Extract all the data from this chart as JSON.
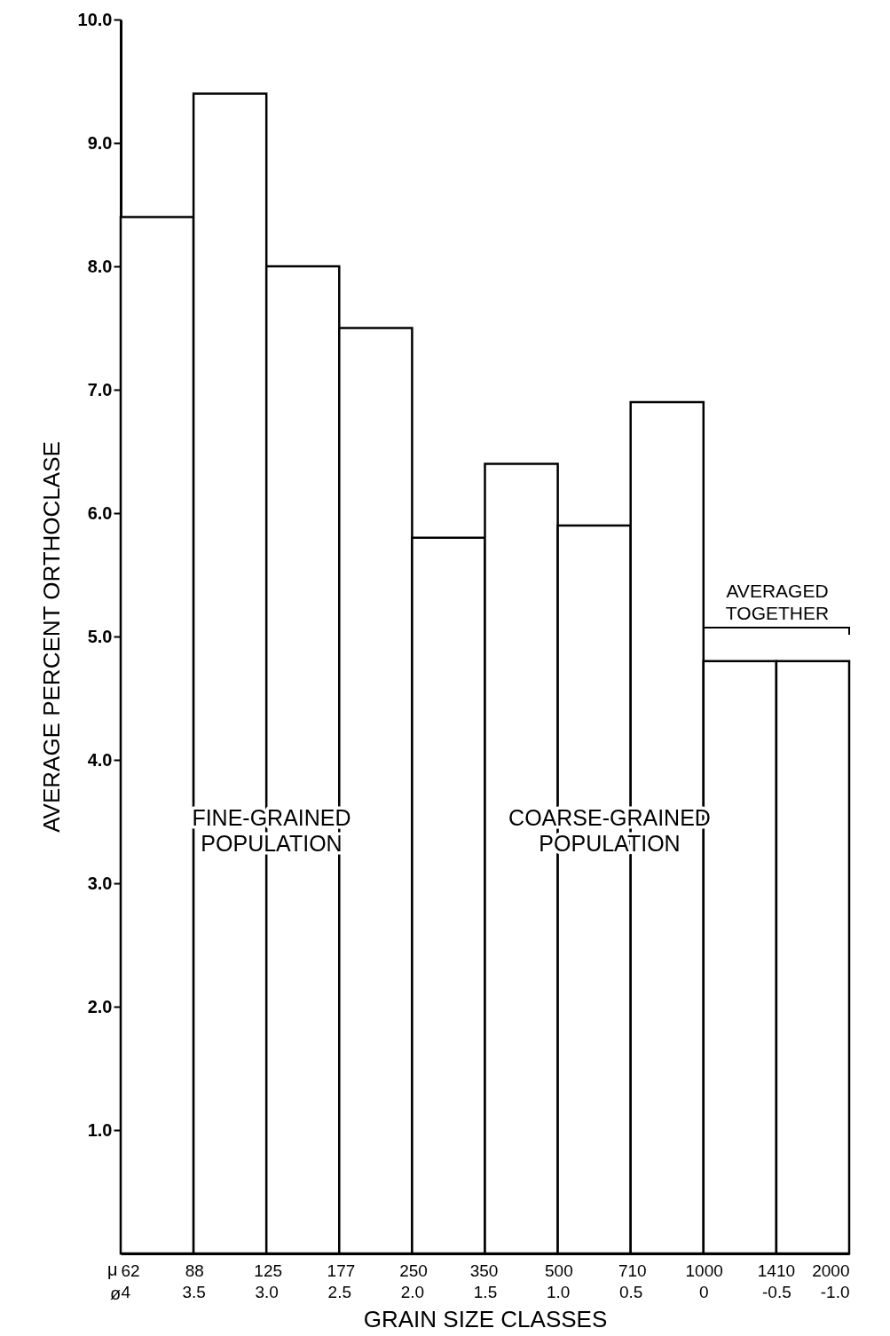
{
  "chart_data": {
    "type": "histogram",
    "xlabel": "GRAIN SIZE CLASSES",
    "ylabel": "AVERAGE PERCENT ORTHOCLASE",
    "x2label": "μ",
    "bins": [
      4,
      3.5,
      3,
      2.5,
      2,
      1.5,
      1,
      0.5,
      0,
      -0.5,
      -1
    ],
    "values": [
      8.4,
      9.4,
      8.0,
      7.5,
      5.8,
      6.4,
      5.9,
      6.9,
      4.8,
      4.8
    ],
    "color": "#ffffff",
    "xlim": [
      4,
      -1
    ],
    "xticks": [
      4,
      3.5,
      {
        "value": 3,
        "label": "3.0"
      },
      2.5,
      {
        "value": 2,
        "label": "2.0"
      },
      1.5,
      {
        "value": 1,
        "label": "1.0"
      },
      0.5,
      0,
      -0.5,
      {
        "value": -1,
        "label": "-1.0"
      }
    ],
    "x2lim": [
      62,
      2000
    ],
    "x2ticks": [
      62,
      88,
      125,
      177,
      250,
      350,
      500,
      710,
      1000,
      1410,
      2000
    ],
    "log": "x2",
    "ylim": [
      0,
      10
    ],
    "yticks": [
      {
        "value": 1,
        "label": "1.0"
      },
      {
        "value": 2,
        "label": "2.0"
      },
      {
        "value": 3,
        "label": "3.0"
      },
      {
        "value": 4,
        "label": "4.0"
      },
      {
        "value": 5,
        "label": "5.0"
      },
      {
        "value": 6,
        "label": "6.0"
      },
      {
        "value": 7,
        "label": "7.0"
      },
      {
        "value": 8,
        "label": "8.0"
      },
      {
        "value": 9,
        "label": "9.0"
      },
      {
        "value": 10,
        "label": "10.0"
      }
    ],
    "annotations": [
      "FINE-GRAINED\nPOPULATION",
      "COARSE-GRAINED\nPOPULATION",
      "AVERAGED\nTOGETHER",
      "ø"
    ],
    "grid": false
  }
}
